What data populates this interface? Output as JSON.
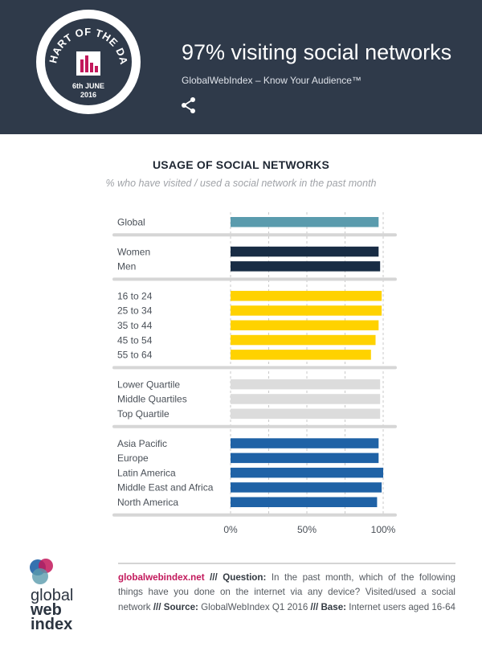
{
  "header": {
    "badge_text": "CHART OF THE DAY",
    "badge_date": "6th JUNE",
    "badge_year": "2016",
    "title": "97% visiting social networks",
    "subtitle": "GlobalWebIndex – Know Your Audience™"
  },
  "chart_data": {
    "type": "bar",
    "orientation": "horizontal",
    "title": "USAGE OF SOCIAL NETWORKS",
    "subtitle": "% who have visited / used a social network in the past month",
    "xlim": [
      0,
      100
    ],
    "xticks": [
      "0%",
      "50%",
      "100%"
    ],
    "grid": true,
    "groups": [
      {
        "color": "#5a9bad",
        "items": [
          {
            "label": "Global",
            "value": 97
          }
        ]
      },
      {
        "color": "#182c44",
        "items": [
          {
            "label": "Women",
            "value": 97
          },
          {
            "label": "Men",
            "value": 98
          }
        ]
      },
      {
        "color": "#ffd200",
        "items": [
          {
            "label": "16 to 24",
            "value": 99
          },
          {
            "label": "25 to 34",
            "value": 99
          },
          {
            "label": "35 to 44",
            "value": 97
          },
          {
            "label": "45 to 54",
            "value": 95
          },
          {
            "label": "55 to 64",
            "value": 92
          }
        ]
      },
      {
        "color": "#dcdcdc",
        "items": [
          {
            "label": "Lower Quartile",
            "value": 98
          },
          {
            "label": "Middle Quartiles",
            "value": 98
          },
          {
            "label": "Top Quartile",
            "value": 98
          }
        ]
      },
      {
        "color": "#1f62a6",
        "items": [
          {
            "label": "Asia Pacific",
            "value": 97
          },
          {
            "label": "Europe",
            "value": 97
          },
          {
            "label": "Latin America",
            "value": 100
          },
          {
            "label": "Middle East and Africa",
            "value": 99
          },
          {
            "label": "North America",
            "value": 96
          }
        ]
      }
    ]
  },
  "footer": {
    "site": "globalwebindex.net",
    "sep1": " /// ",
    "question_label": "Question:",
    "question_text": " In the past month, which of the following things have you done on the internet via any device? Visited/used a social network",
    "sep2": " /// ",
    "source_label": "Source:",
    "source_text": " GlobalWebIndex Q1 2016",
    "sep3": " /// ",
    "base_label": "Base:",
    "base_text": " Internet users aged 16-64",
    "logo_line1": "global",
    "logo_line2": "web",
    "logo_line3": "index"
  },
  "colors": {
    "header_bg": "#2f3a4a",
    "accent_pink": "#c2185b"
  }
}
